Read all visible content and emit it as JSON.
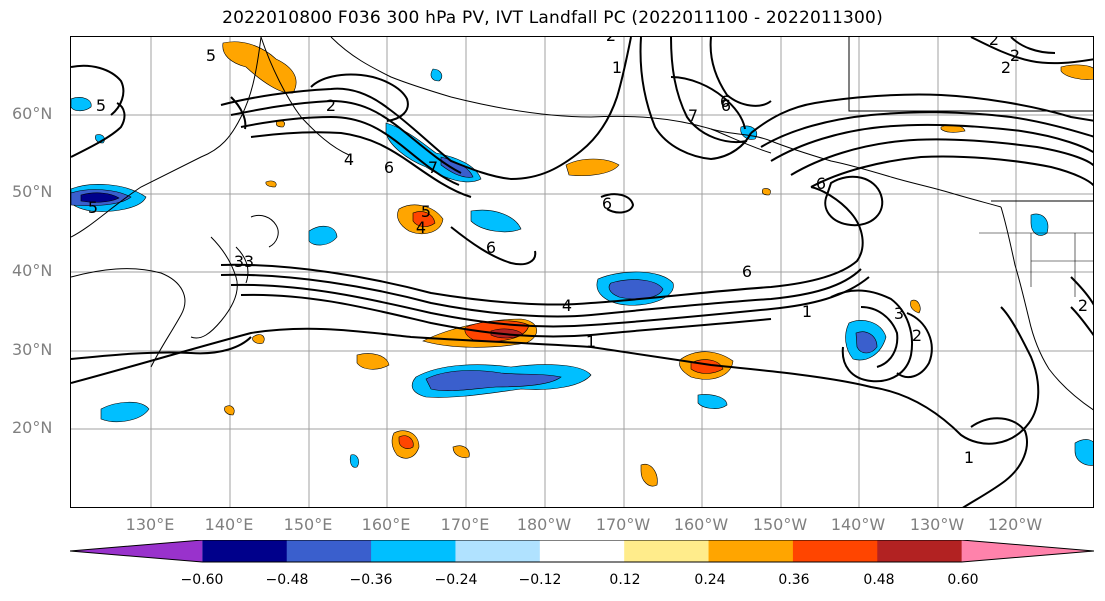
{
  "title": "2022010800 F036 300 hPa PV, IVT Landfall PC (2022011100 - 2022011300)",
  "lat_labels": [
    "60°N",
    "50°N",
    "40°N",
    "30°N",
    "20°N"
  ],
  "lon_labels": [
    "130°E",
    "140°E",
    "150°E",
    "160°E",
    "170°E",
    "180°W",
    "170°W",
    "160°W",
    "150°W",
    "140°W",
    "130°W",
    "120°W"
  ],
  "map": {
    "lon_range": [
      120,
      250
    ],
    "lat_range": [
      10,
      70
    ],
    "gridlines": true,
    "contour_color": "#000000",
    "coastline_color": "#000000"
  },
  "colorbar": {
    "colors": [
      "#9932cc",
      "#00008b",
      "#3a5fcd",
      "#00bfff",
      "#b0e2ff",
      "#ffffff",
      "#ffec8b",
      "#ffa500",
      "#ff4500",
      "#b22222",
      "#ff82ab"
    ],
    "tick_labels": [
      "−0.60",
      "−0.48",
      "−0.36",
      "−0.24",
      "−0.12",
      "0.12",
      "0.24",
      "0.36",
      "0.48",
      "0.60"
    ],
    "extend": "both"
  },
  "contour_labels": [
    "5",
    "5",
    "2",
    "4",
    "6",
    "7",
    "5",
    "4",
    "5",
    "6",
    "6",
    "2",
    "1",
    "7",
    "6",
    "2",
    "6",
    "6",
    "3",
    "4",
    "6",
    "3",
    "2",
    "1",
    "1",
    "2",
    "2",
    "3",
    "1",
    "2"
  ]
}
